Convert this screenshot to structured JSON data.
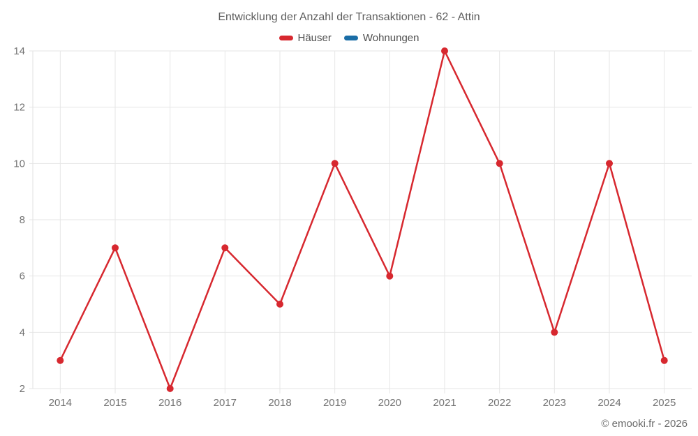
{
  "header": {
    "title": "Entwicklung der Anzahl der Transaktionen - 62 - Attin"
  },
  "footer": {
    "copyright": "© emooki.fr - 2026"
  },
  "chart_data": {
    "type": "line",
    "title": "Entwicklung der Anzahl der Transaktionen - 62 - Attin",
    "categories": [
      "2014",
      "2015",
      "2016",
      "2017",
      "2018",
      "2019",
      "2020",
      "2021",
      "2022",
      "2023",
      "2024",
      "2025"
    ],
    "series": [
      {
        "name": "Häuser",
        "color": "#d7282f",
        "values": [
          3,
          7,
          2,
          7,
          5,
          10,
          6,
          14,
          10,
          4,
          10,
          3
        ]
      },
      {
        "name": "Wohnungen",
        "color": "#1a6da6",
        "values": []
      }
    ],
    "xlabel": "",
    "ylabel": "",
    "ylim": [
      2,
      14
    ],
    "yticks": [
      2,
      4,
      6,
      8,
      10,
      12,
      14
    ],
    "grid": true,
    "legend_position": "top",
    "marker": "circle"
  },
  "style": {
    "grid_color": "#e6e6e6",
    "axis_line_color": "#e2e2e2",
    "tick_label_color": "#737373",
    "title_color": "#5e5e5e",
    "legend_label_color": "#4f4f4f",
    "footer_color": "#6b6b6b",
    "background": "#ffffff"
  }
}
